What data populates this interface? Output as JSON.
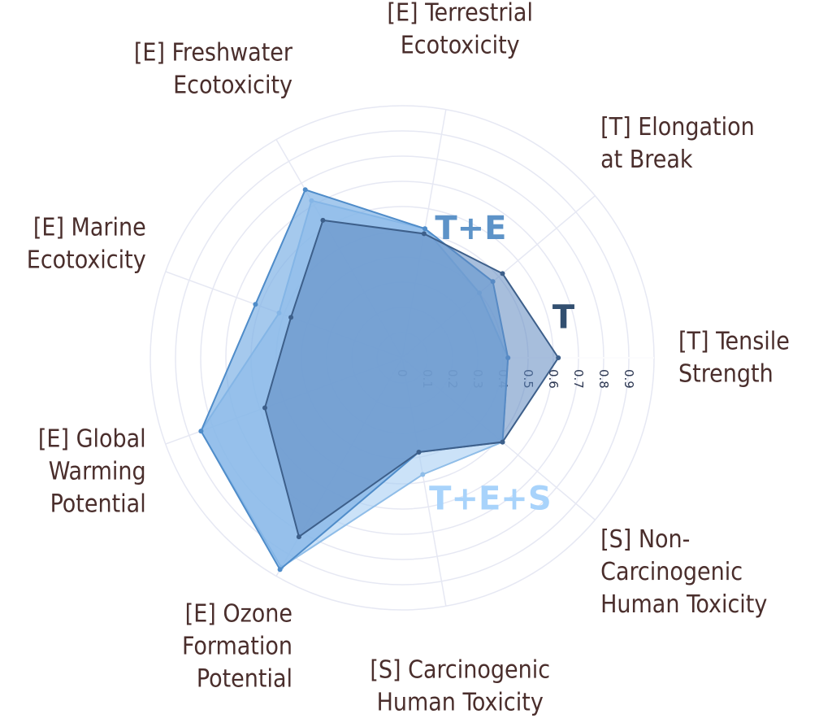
{
  "chart_data": {
    "type": "radar",
    "axes": [
      {
        "lines": [
          "[T] Tensile",
          "Strength"
        ]
      },
      {
        "lines": [
          "[T] Elongation",
          "at Break"
        ]
      },
      {
        "lines": [
          "[E] Terrestrial",
          "Ecotoxicity"
        ]
      },
      {
        "lines": [
          "[E] Freshwater",
          "Ecotoxicity"
        ]
      },
      {
        "lines": [
          "[E] Marine",
          "Ecotoxicity"
        ]
      },
      {
        "lines": [
          "[E] Global",
          "Warming",
          "Potential"
        ]
      },
      {
        "lines": [
          "[E] Ozone",
          "Formation",
          "Potential"
        ]
      },
      {
        "lines": [
          "[S] Carcinogenic",
          "Human Toxicity"
        ]
      },
      {
        "lines": [
          "[S] Non-",
          "Carcinogenic",
          "Human Toxicity"
        ]
      }
    ],
    "radial_ticks": [
      "0",
      "0.1",
      "0.2",
      "0.3",
      "0.4",
      "0.5",
      "0.6",
      "0.7",
      "0.8",
      "0.9"
    ],
    "radial_range": [
      0,
      1
    ],
    "grid": true,
    "series": [
      {
        "name": "T+E+S",
        "values": [
          0.42,
          0.4,
          0.52,
          0.72,
          0.52,
          0.85,
          0.96,
          0.47,
          0.52
        ],
        "color": "#a9cff3",
        "stroke": "#8fbde8",
        "opacity": 0.6
      },
      {
        "name": "T+E",
        "values": [
          0.42,
          0.47,
          0.52,
          0.77,
          0.62,
          0.85,
          0.97,
          0.38,
          0.52
        ],
        "color": "#7fb2e6",
        "stroke": "#4f8cc9",
        "opacity": 0.7
      },
      {
        "name": "T",
        "values": [
          0.62,
          0.52,
          0.5,
          0.63,
          0.47,
          0.58,
          0.82,
          0.38,
          0.52
        ],
        "color": "#5f88bf",
        "stroke": "#3d5f8a",
        "opacity": 0.55
      }
    ],
    "series_label_colors": {
      "T+E+S": "#a8d3fb",
      "T+E": "#5d93c8",
      "T": "#324f70"
    }
  }
}
